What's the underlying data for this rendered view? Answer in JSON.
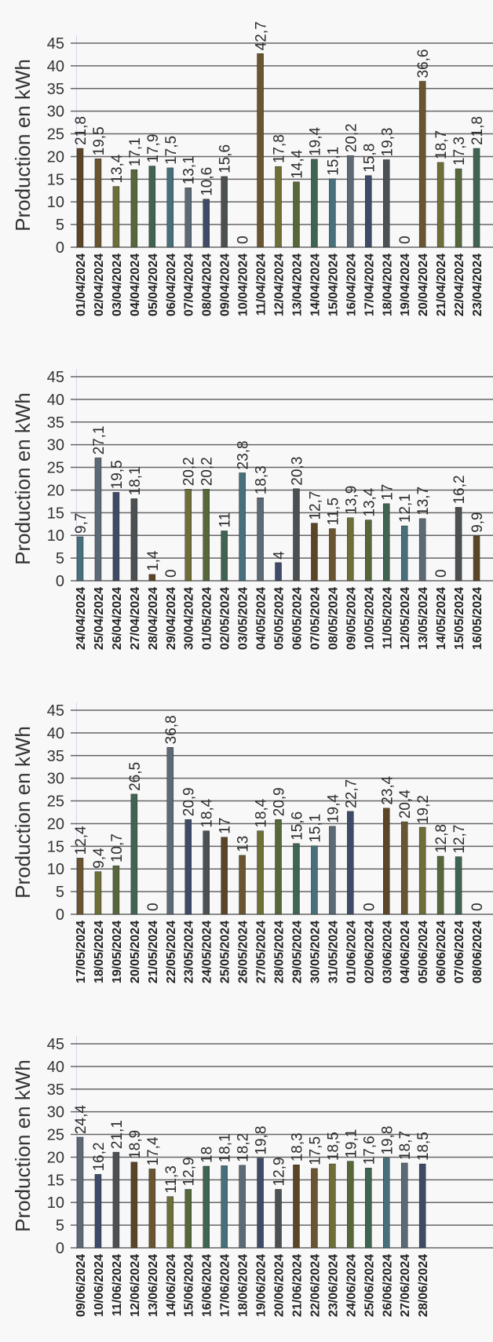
{
  "chart_data": {
    "type": "bar",
    "title": "",
    "xlabel": "",
    "ylabel": "Production en kWh",
    "ylim": [
      0,
      45
    ],
    "yticks": [
      0,
      5,
      10,
      15,
      20,
      25,
      30,
      35,
      40,
      45
    ],
    "grid": true,
    "legend": "none",
    "palette": [
      "#5b4526",
      "#6a5530",
      "#6e6f36",
      "#56683a",
      "#3f6452",
      "#45707c",
      "#5d6a76",
      "#3d4a68",
      "#4d5052"
    ],
    "categories": [
      "01/04/2024",
      "02/04/2024",
      "03/04/2024",
      "04/04/2024",
      "05/04/2024",
      "06/04/2024",
      "07/04/2024",
      "08/04/2024",
      "09/04/2024",
      "10/04/2024",
      "11/04/2024",
      "12/04/2024",
      "13/04/2024",
      "14/04/2024",
      "15/04/2024",
      "16/04/2024",
      "17/04/2024",
      "18/04/2024",
      "19/04/2024",
      "20/04/2024",
      "21/04/2024",
      "22/04/2024",
      "23/04/2024",
      "24/04/2024",
      "25/04/2024",
      "26/04/2024",
      "27/04/2024",
      "28/04/2024",
      "29/04/2024",
      "30/04/2024",
      "01/05/2024",
      "02/05/2024",
      "03/05/2024",
      "04/05/2024",
      "05/05/2024",
      "06/05/2024",
      "07/05/2024",
      "08/05/2024",
      "09/05/2024",
      "10/05/2024",
      "11/05/2024",
      "12/05/2024",
      "13/05/2024",
      "14/05/2024",
      "15/05/2024",
      "16/05/2024",
      "17/05/2024",
      "18/05/2024",
      "19/05/2024",
      "20/05/2024",
      "21/05/2024",
      "22/05/2024",
      "23/05/2024",
      "24/05/2024",
      "25/05/2024",
      "26/05/2024",
      "27/05/2024",
      "28/05/2024",
      "29/05/2024",
      "30/05/2024",
      "31/05/2024",
      "01/06/2024",
      "02/06/2024",
      "03/06/2024",
      "04/06/2024",
      "05/06/2024",
      "06/06/2024",
      "07/06/2024",
      "08/06/2024",
      "09/06/2024",
      "10/06/2024",
      "11/06/2024",
      "12/06/2024",
      "13/06/2024",
      "14/06/2024",
      "15/06/2024",
      "16/06/2024",
      "17/06/2024",
      "18/06/2024",
      "19/06/2024",
      "20/06/2024",
      "21/06/2024",
      "22/06/2024",
      "23/06/2024",
      "24/06/2024",
      "25/06/2024",
      "26/06/2024",
      "27/06/2024",
      "28/06/2024"
    ],
    "values": [
      21.8,
      19.5,
      13.4,
      17.1,
      17.9,
      17.5,
      13.1,
      10.6,
      15.6,
      0,
      42.7,
      17.8,
      14.4,
      19.4,
      15.1,
      20.2,
      15.8,
      19.3,
      0,
      36.6,
      18.7,
      17.3,
      21.8,
      9.7,
      27.1,
      19.5,
      18.1,
      1.4,
      0,
      20.2,
      20.2,
      11,
      23.8,
      18.3,
      4,
      20.3,
      12.7,
      11.5,
      13.9,
      13.4,
      17,
      12.1,
      13.7,
      0,
      16.2,
      9.9,
      12.4,
      9.4,
      10.7,
      26.5,
      0,
      36.8,
      20.9,
      18.4,
      17,
      13,
      18.4,
      20.9,
      15.6,
      15.1,
      19.4,
      22.7,
      0,
      23.4,
      20.4,
      19.2,
      12.8,
      12.7,
      0,
      24.4,
      16.2,
      21.1,
      18.9,
      17.4,
      11.3,
      12.9,
      18,
      18.1,
      18.2,
      19.8,
      12.9,
      18.3,
      17.5,
      18.5,
      19.1,
      17.6,
      19.8,
      18.7,
      18.5
    ]
  }
}
